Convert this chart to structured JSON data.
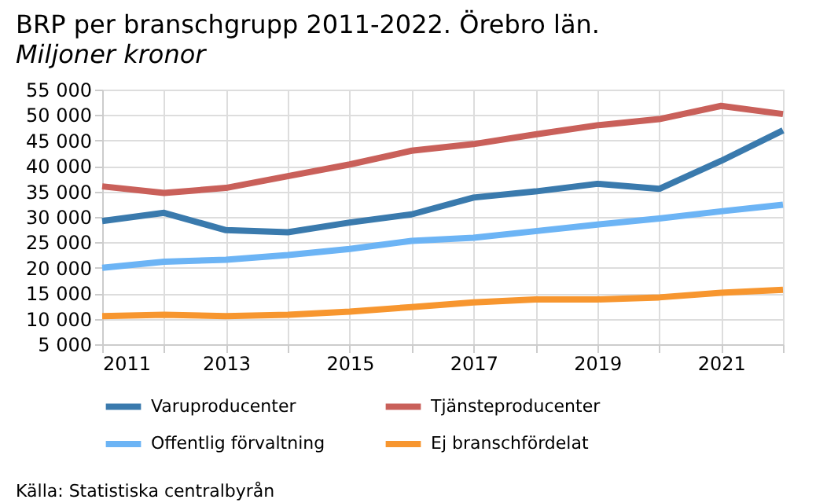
{
  "chart_data": {
    "type": "line",
    "title": "BRP per branschgrupp 2011-2022. Örebro län.",
    "subtitle": "Miljoner kronor",
    "x": [
      2011,
      2012,
      2013,
      2014,
      2015,
      2016,
      2017,
      2018,
      2019,
      2020,
      2021,
      2022
    ],
    "series": [
      {
        "name": "Varuproducenter",
        "color": "#3a7aad",
        "values": [
          29200,
          30800,
          27400,
          27000,
          28900,
          30500,
          33800,
          35000,
          36500,
          35500,
          41000,
          47000
        ]
      },
      {
        "name": "Tjänsteproducenter",
        "color": "#c9605a",
        "values": [
          36000,
          34700,
          35700,
          38000,
          40300,
          43000,
          44300,
          46200,
          48000,
          49200,
          51800,
          50200
        ]
      },
      {
        "name": "Offentlig förvaltning",
        "color": "#6cb4f5",
        "values": [
          20000,
          21200,
          21600,
          22500,
          23700,
          25300,
          25900,
          27200,
          28500,
          29700,
          31100,
          32400
        ]
      },
      {
        "name": "Ej branschfördelat",
        "color": "#f7962f",
        "values": [
          10500,
          10800,
          10500,
          10800,
          11400,
          12300,
          13200,
          13800,
          13800,
          14200,
          15100,
          15700
        ]
      }
    ],
    "xlim": [
      2011,
      2022
    ],
    "xticks": [
      2011,
      {
        "value": 2012,
        "label": null
      },
      2013,
      {
        "value": 2014,
        "label": null
      },
      2015,
      {
        "value": 2016,
        "label": null
      },
      2017,
      {
        "value": 2018,
        "label": null
      },
      2019,
      {
        "value": 2020,
        "label": null
      },
      2021,
      {
        "value": 2022,
        "label": null
      }
    ],
    "ylim": [
      5000,
      55000
    ],
    "yticks": [
      {
        "value": 5000,
        "label": "5 000"
      },
      {
        "value": 10000,
        "label": "10 000"
      },
      {
        "value": 15000,
        "label": "15 000"
      },
      {
        "value": 20000,
        "label": "20 000"
      },
      {
        "value": 25000,
        "label": "25 000"
      },
      {
        "value": 30000,
        "label": "30 000"
      },
      {
        "value": 35000,
        "label": "35 000"
      },
      {
        "value": 40000,
        "label": "40 000"
      },
      {
        "value": 45000,
        "label": "45 000"
      },
      {
        "value": 50000,
        "label": "50 000"
      },
      {
        "value": 55000,
        "label": "55 000"
      }
    ],
    "grid": true,
    "legend": "bottom",
    "marker": "none",
    "line_style": "solid",
    "annotations": [
      "Källa: Statistiska centralbyrån"
    ]
  }
}
